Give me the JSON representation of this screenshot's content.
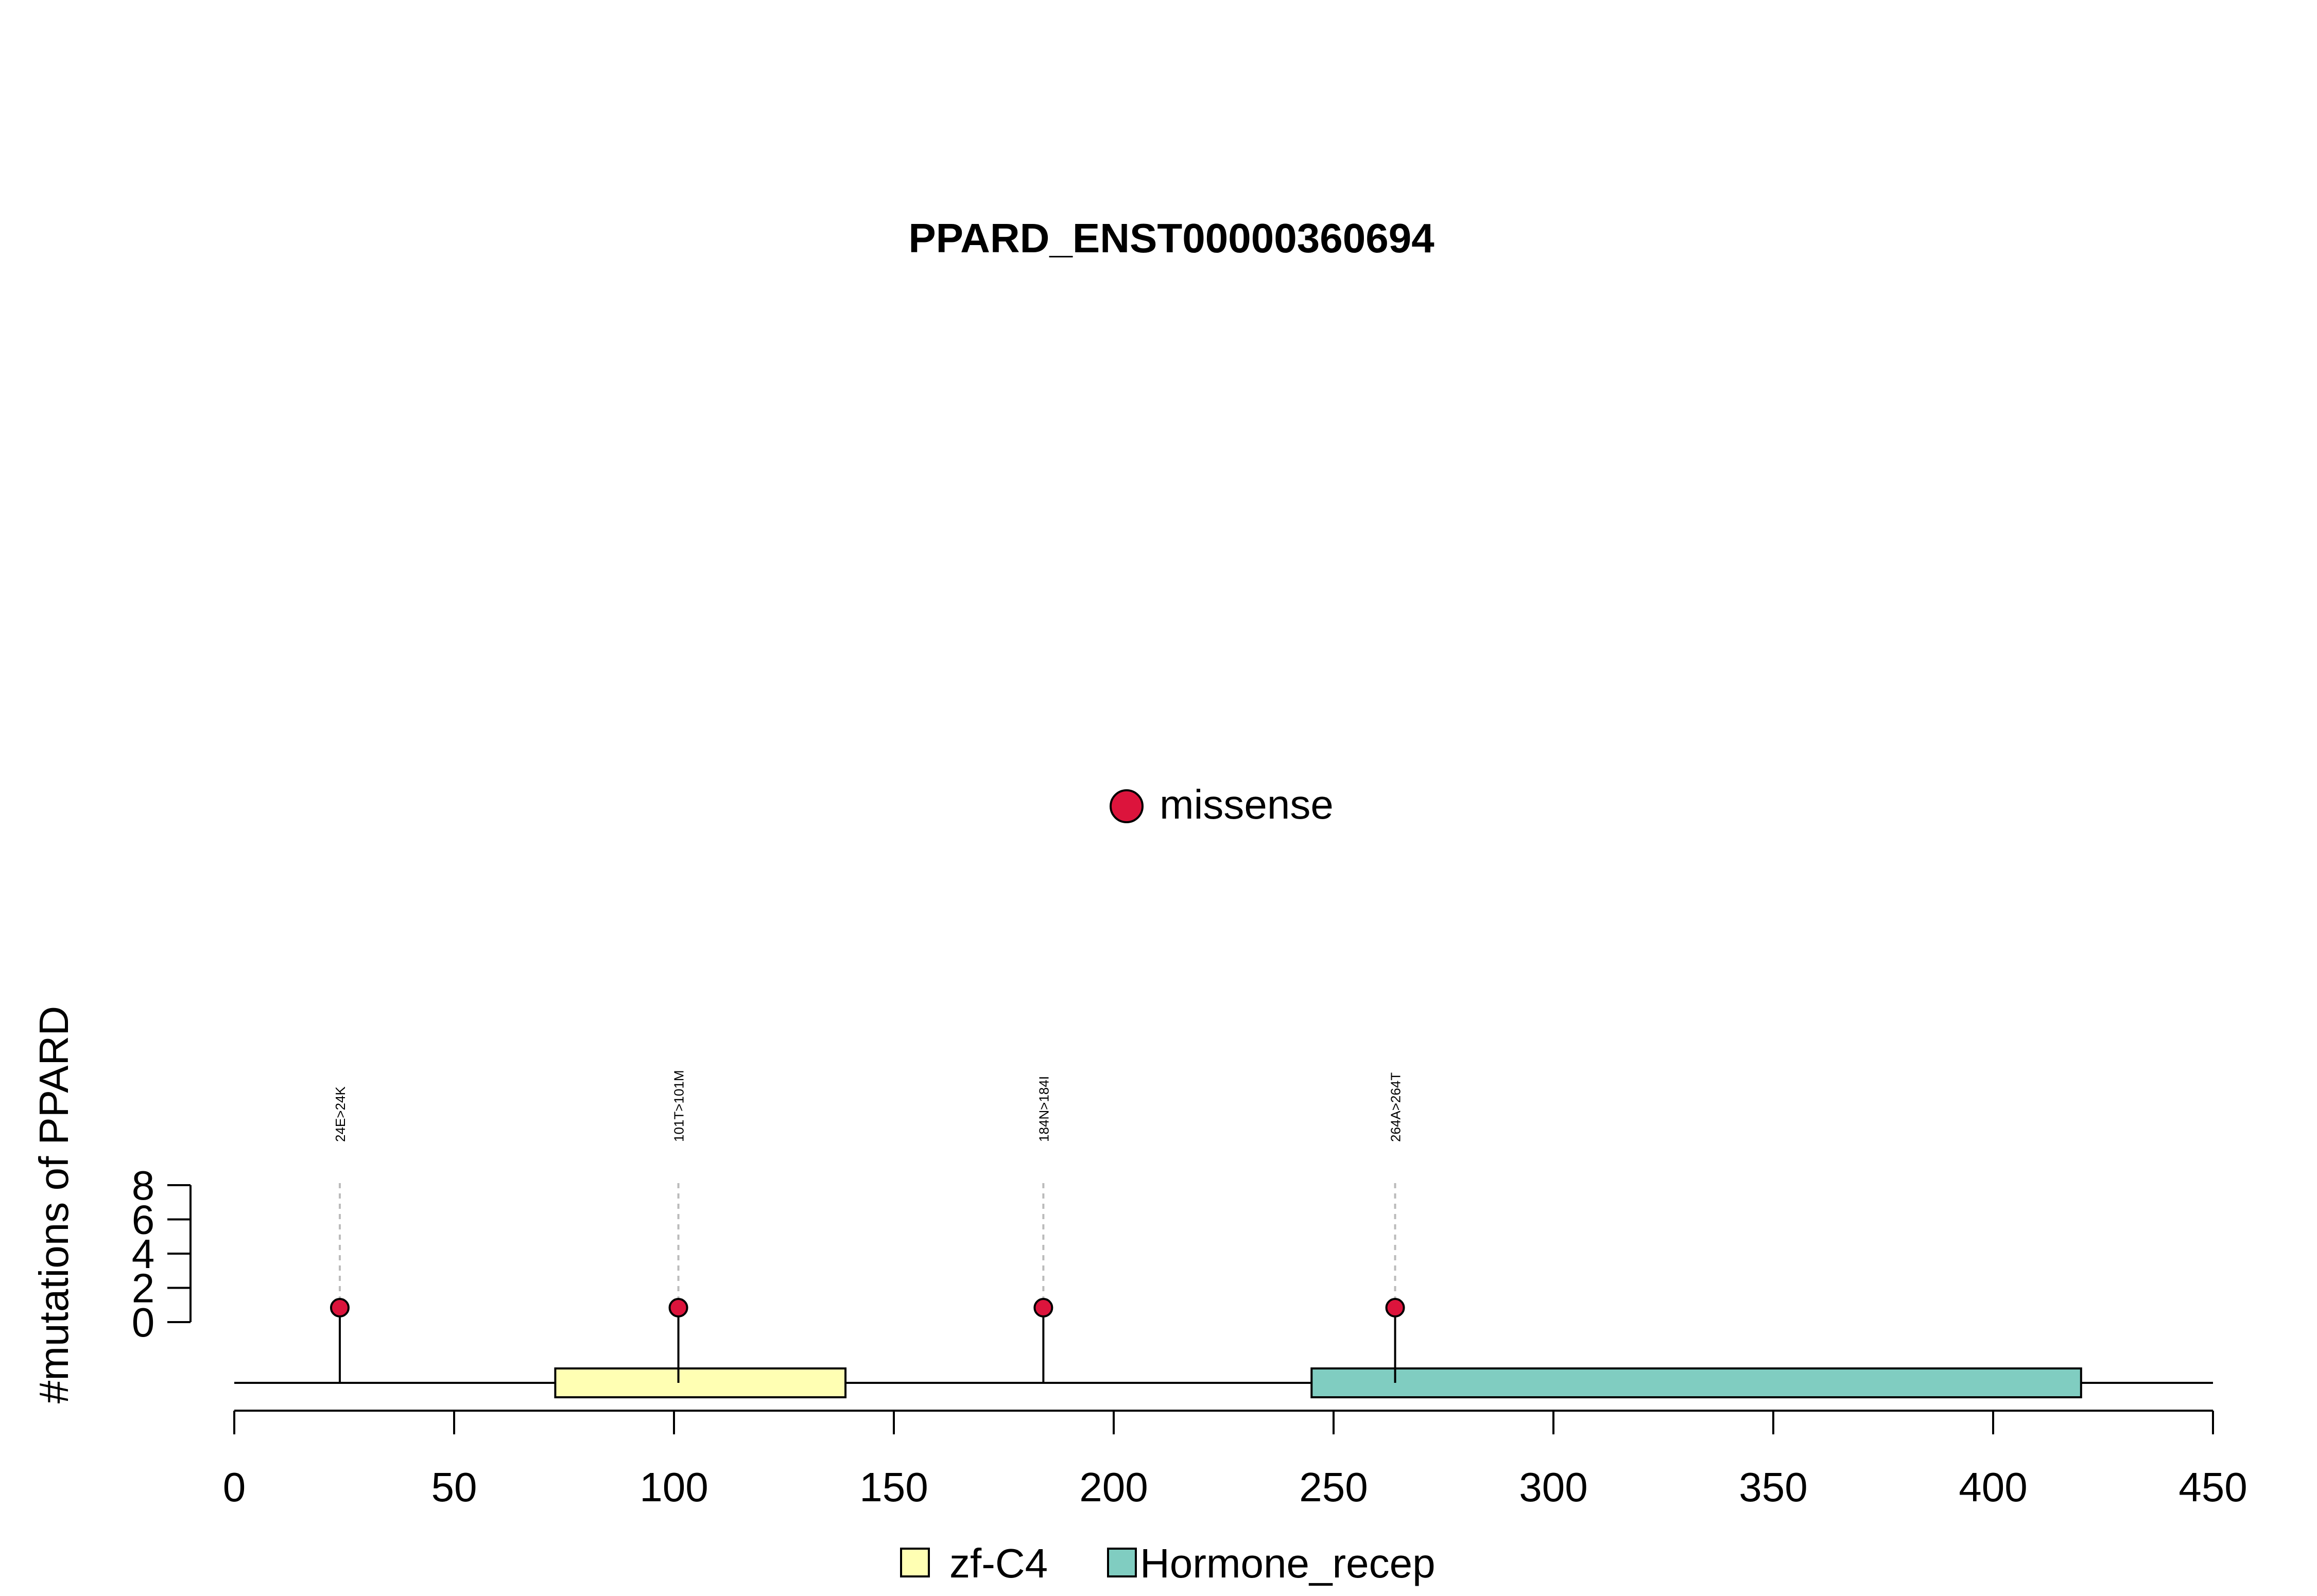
{
  "chart_data": {
    "type": "lollipop",
    "title": "PPARD_ENST00000360694",
    "ylabel": "#mutations of PPARD",
    "xlim": [
      0,
      450
    ],
    "ylim": [
      0,
      8
    ],
    "x_ticks": [
      0,
      50,
      100,
      150,
      200,
      250,
      300,
      350,
      400,
      450
    ],
    "y_ticks": [
      0,
      2,
      4,
      6,
      8
    ],
    "mutation_legend": [
      {
        "label": "missense",
        "color": "#DC143C"
      }
    ],
    "mutations": [
      {
        "position": 24,
        "count": 1,
        "label": "24E>24K",
        "type": "missense"
      },
      {
        "position": 101,
        "count": 1,
        "label": "101T>101M",
        "type": "missense"
      },
      {
        "position": 184,
        "count": 1,
        "label": "184N>184I",
        "type": "missense"
      },
      {
        "position": 264,
        "count": 1,
        "label": "264A>264T",
        "type": "missense"
      }
    ],
    "domains": [
      {
        "name": "zf-C4",
        "start": 73,
        "end": 139,
        "color": "#FFFFB3"
      },
      {
        "name": "Hormone_recep",
        "start": 245,
        "end": 420,
        "color": "#80CDC1"
      }
    ],
    "protein_length": 450
  }
}
